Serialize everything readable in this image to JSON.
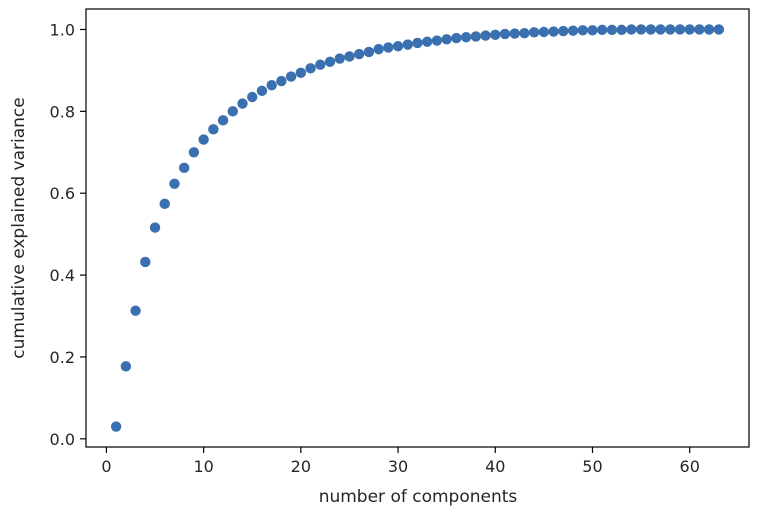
{
  "chart_data": {
    "type": "scatter",
    "title": "",
    "xlabel": "number of  components",
    "ylabel": "cumulative explained variance",
    "xlim": [
      -2.1,
      66.1
    ],
    "ylim": [
      -0.02,
      1.05
    ],
    "xticks": [
      0,
      10,
      20,
      30,
      40,
      50,
      60
    ],
    "xtick_labels": [
      "0",
      "10",
      "20",
      "30",
      "40",
      "50",
      "60"
    ],
    "yticks": [
      0.0,
      0.2,
      0.4,
      0.6,
      0.8,
      1.0
    ],
    "ytick_labels": [
      "0.0",
      "0.2",
      "0.4",
      "0.6",
      "0.8",
      "1.0"
    ],
    "grid": false,
    "marker_color": "#3a70b0",
    "x": [
      1,
      2,
      3,
      4,
      5,
      6,
      7,
      8,
      9,
      10,
      11,
      12,
      13,
      14,
      15,
      16,
      17,
      18,
      19,
      20,
      21,
      22,
      23,
      24,
      25,
      26,
      27,
      28,
      29,
      30,
      31,
      32,
      33,
      34,
      35,
      36,
      37,
      38,
      39,
      40,
      41,
      42,
      43,
      44,
      45,
      46,
      47,
      48,
      49,
      50,
      51,
      52,
      53,
      54,
      55,
      56,
      57,
      58,
      59,
      60,
      61,
      62,
      63
    ],
    "y": [
      0.03,
      0.177,
      0.313,
      0.432,
      0.516,
      0.574,
      0.623,
      0.662,
      0.7,
      0.731,
      0.756,
      0.778,
      0.8,
      0.819,
      0.835,
      0.85,
      0.864,
      0.874,
      0.885,
      0.894,
      0.905,
      0.914,
      0.921,
      0.929,
      0.934,
      0.94,
      0.945,
      0.952,
      0.956,
      0.959,
      0.963,
      0.967,
      0.97,
      0.973,
      0.976,
      0.979,
      0.981,
      0.983,
      0.985,
      0.987,
      0.989,
      0.99,
      0.991,
      0.993,
      0.994,
      0.995,
      0.996,
      0.997,
      0.998,
      0.998,
      0.999,
      0.999,
      0.999,
      1.0,
      1.0,
      1.0,
      1.0,
      1.0,
      1.0,
      1.0,
      1.0,
      1.0,
      1.0
    ]
  }
}
